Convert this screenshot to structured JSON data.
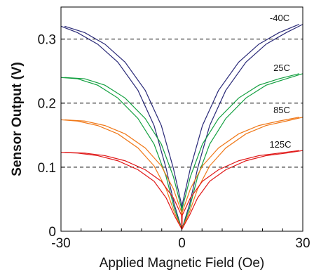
{
  "chart_data": {
    "type": "line",
    "title": "",
    "xlabel": "Applied Magnetic Field (Oe)",
    "ylabel": "Sensor Output (V)",
    "xlim": [
      -30,
      30
    ],
    "ylim": [
      0,
      0.35
    ],
    "x_ticks": [
      -30,
      0,
      30
    ],
    "x_tick_labels": [
      "-30",
      "0",
      "30"
    ],
    "y_ticks": [
      0,
      0.1,
      0.2,
      0.3
    ],
    "y_tick_labels": [
      "0",
      "0.1",
      "0.2",
      "0.3"
    ],
    "dashed_gridlines_y": [
      0.1,
      0.2,
      0.3
    ],
    "legend": "none",
    "series": [
      {
        "name": "-40C",
        "color": "#2a2a78",
        "x": [
          -30,
          -25,
          -20,
          -15,
          -10,
          -6,
          -3,
          -1,
          0,
          1,
          3,
          6,
          10,
          15,
          20,
          25,
          30
        ],
        "y": [
          0.32,
          0.31,
          0.292,
          0.264,
          0.22,
          0.165,
          0.098,
          0.042,
          0.003,
          0.042,
          0.098,
          0.165,
          0.22,
          0.264,
          0.292,
          0.31,
          0.323
        ]
      },
      {
        "name": "25C",
        "color": "#13a040",
        "x": [
          -30,
          -25,
          -20,
          -15,
          -10,
          -6,
          -3,
          -1,
          0,
          1,
          3,
          6,
          10,
          15,
          20,
          25,
          30
        ],
        "y": [
          0.24,
          0.238,
          0.228,
          0.208,
          0.176,
          0.136,
          0.085,
          0.036,
          0.003,
          0.036,
          0.085,
          0.136,
          0.176,
          0.208,
          0.228,
          0.238,
          0.246
        ]
      },
      {
        "name": "85C",
        "color": "#f07818",
        "x": [
          -30,
          -25,
          -20,
          -15,
          -10,
          -6,
          -3,
          -1,
          0,
          1,
          3,
          6,
          10,
          15,
          20,
          25,
          30
        ],
        "y": [
          0.174,
          0.172,
          0.165,
          0.152,
          0.13,
          0.102,
          0.066,
          0.03,
          0.003,
          0.03,
          0.066,
          0.102,
          0.13,
          0.152,
          0.165,
          0.172,
          0.178
        ]
      },
      {
        "name": "125C",
        "color": "#e01818",
        "x": [
          -30,
          -25,
          -20,
          -15,
          -10,
          -6,
          -3,
          -1,
          0,
          1,
          3,
          6,
          10,
          15,
          20,
          25,
          30
        ],
        "y": [
          0.123,
          0.122,
          0.118,
          0.11,
          0.096,
          0.078,
          0.052,
          0.025,
          0.003,
          0.025,
          0.052,
          0.078,
          0.096,
          0.11,
          0.118,
          0.122,
          0.126
        ]
      }
    ]
  }
}
